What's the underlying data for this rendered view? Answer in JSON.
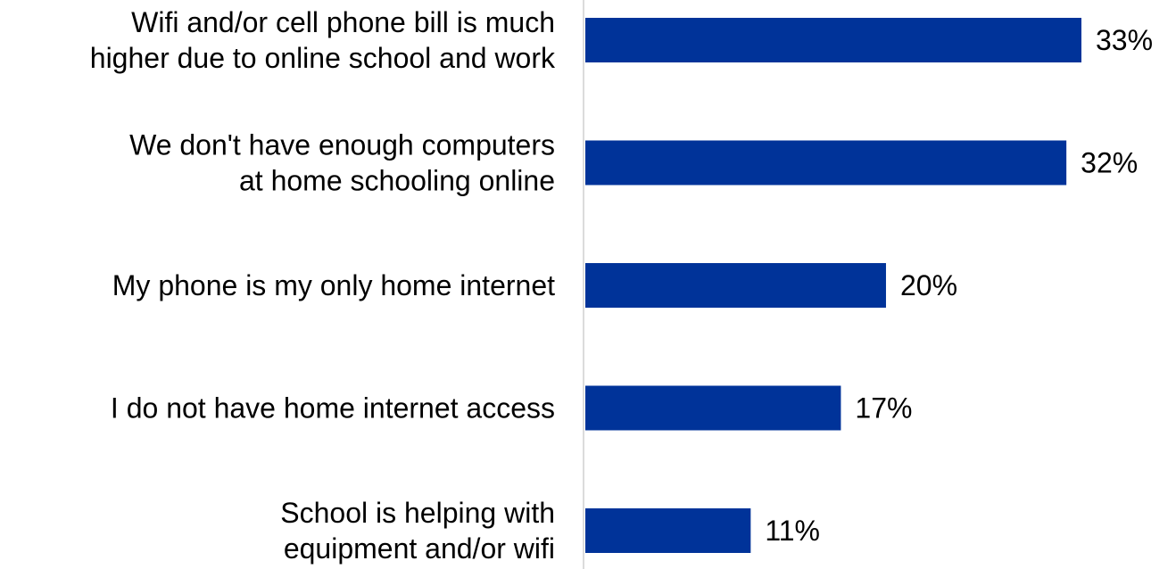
{
  "chart_data": {
    "type": "bar",
    "orientation": "horizontal",
    "title": "",
    "xlabel": "",
    "ylabel": "",
    "categories": [
      [
        "Wifi and/or cell phone bill is much",
        "higher due to online school and work"
      ],
      [
        "We don't have enough computers",
        "at home schooling online"
      ],
      [
        "My phone is my only home internet"
      ],
      [
        "I do not have home internet access"
      ],
      [
        "School is helping with",
        "equipment and/or wifi"
      ]
    ],
    "values": [
      33,
      32,
      20,
      17,
      11
    ],
    "value_labels": [
      "33%",
      "32%",
      "20%",
      "17%",
      "11%"
    ],
    "unit": "%",
    "xlim": [
      0,
      33
    ],
    "grid": false,
    "legend": "none",
    "bar_color": "#003399",
    "axis_line_color": "#d0d0d0"
  }
}
